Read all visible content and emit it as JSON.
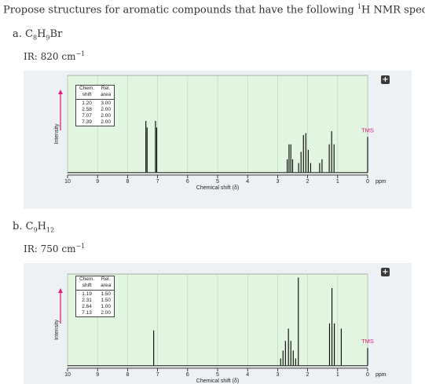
{
  "question": {
    "prefix": "Propose structures for aromatic compounds that have the following ",
    "sup": "1",
    "suffix": "H NMR spectra:"
  },
  "ui": {
    "expand_symbol": "+"
  },
  "axis": {
    "ppm_label": "ppm",
    "xlabel": "Chemical shift (δ)",
    "ylabel": "Intensity",
    "tms_label": "TMS"
  },
  "parts": [
    {
      "label": "a.",
      "formula": [
        {
          "t": "C"
        },
        {
          "s": "8"
        },
        {
          "t": "H"
        },
        {
          "s": "9"
        },
        {
          "t": "Br"
        }
      ],
      "ir_prefix": "IR: ",
      "ir_value": "820 cm",
      "ir_exp": "−1",
      "table": {
        "headers": [
          [
            "Chem.",
            "Rel."
          ],
          [
            "shift",
            "area"
          ]
        ],
        "rows": [
          [
            "1.20",
            "3.00"
          ],
          [
            "2.58",
            "2.00"
          ],
          [
            "7.07",
            "2.00"
          ],
          [
            "7.39",
            "2.00"
          ]
        ]
      },
      "chart_data": {
        "type": "line",
        "title": "",
        "xlabel": "Chemical shift (δ)",
        "ylabel": "Intensity",
        "xlim": [
          10,
          0
        ],
        "x_ticks": [
          10,
          9,
          8,
          7,
          6,
          5,
          4,
          3,
          2,
          1,
          0
        ],
        "x_unit": "ppm",
        "grid": true,
        "peaks": [
          {
            "x": 7.39,
            "h": 0.55
          },
          {
            "x": 7.35,
            "h": 0.48
          },
          {
            "x": 7.07,
            "h": 0.55
          },
          {
            "x": 7.03,
            "h": 0.48
          },
          {
            "x": 2.68,
            "h": 0.14
          },
          {
            "x": 2.62,
            "h": 0.3
          },
          {
            "x": 2.56,
            "h": 0.3
          },
          {
            "x": 2.5,
            "h": 0.14
          },
          {
            "x": 2.3,
            "h": 0.1
          },
          {
            "x": 2.22,
            "h": 0.22
          },
          {
            "x": 2.14,
            "h": 0.4
          },
          {
            "x": 2.06,
            "h": 0.42
          },
          {
            "x": 1.98,
            "h": 0.24
          },
          {
            "x": 1.9,
            "h": 0.1
          },
          {
            "x": 1.28,
            "h": 0.3
          },
          {
            "x": 1.2,
            "h": 0.44
          },
          {
            "x": 1.12,
            "h": 0.3
          },
          {
            "x": 1.6,
            "h": 0.1
          },
          {
            "x": 1.52,
            "h": 0.14
          },
          {
            "x": 0.0,
            "h": 0.38
          }
        ],
        "annotation": "TMS"
      }
    },
    {
      "label": "b.",
      "formula": [
        {
          "t": "C"
        },
        {
          "s": "9"
        },
        {
          "t": "H"
        },
        {
          "s": "12"
        }
      ],
      "ir_prefix": "IR: ",
      "ir_value": "750 cm",
      "ir_exp": "−1",
      "table": {
        "headers": [
          [
            "Chem.",
            "Rel."
          ],
          [
            "shift",
            "area"
          ]
        ],
        "rows": [
          [
            "1.19",
            "1.50"
          ],
          [
            "2.31",
            "1.50"
          ],
          [
            "2.64",
            "1.00"
          ],
          [
            "7.13",
            "2.00"
          ]
        ]
      },
      "chart_data": {
        "type": "line",
        "title": "",
        "xlabel": "Chemical shift (δ)",
        "ylabel": "Intensity",
        "xlim": [
          10,
          0
        ],
        "x_ticks": [
          10,
          9,
          8,
          7,
          6,
          5,
          4,
          3,
          2,
          1,
          0
        ],
        "x_unit": "ppm",
        "grid": true,
        "peaks": [
          {
            "x": 7.13,
            "h": 0.4
          },
          {
            "x": 2.9,
            "h": 0.08
          },
          {
            "x": 2.82,
            "h": 0.17
          },
          {
            "x": 2.74,
            "h": 0.28
          },
          {
            "x": 2.64,
            "h": 0.42
          },
          {
            "x": 2.56,
            "h": 0.28
          },
          {
            "x": 2.48,
            "h": 0.17
          },
          {
            "x": 2.4,
            "h": 0.08
          },
          {
            "x": 2.31,
            "h": 1.0
          },
          {
            "x": 1.27,
            "h": 0.48
          },
          {
            "x": 1.19,
            "h": 0.88
          },
          {
            "x": 1.11,
            "h": 0.48
          },
          {
            "x": 0.88,
            "h": 0.42
          },
          {
            "x": 0.0,
            "h": 0.2
          }
        ],
        "annotation": "TMS"
      }
    }
  ]
}
